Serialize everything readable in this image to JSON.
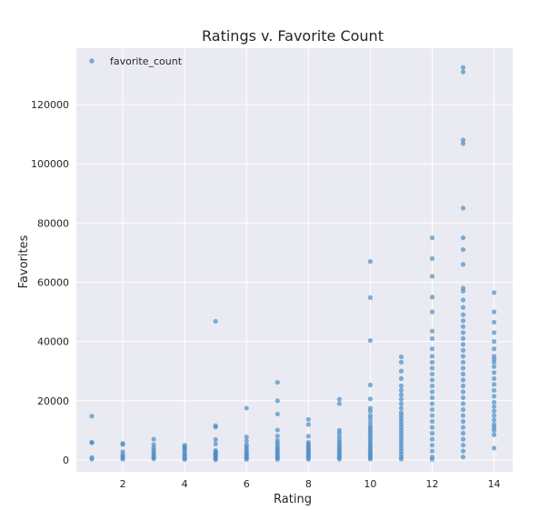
{
  "chart_data": {
    "type": "scatter",
    "title": "Ratings v. Favorite Count",
    "xlabel": "Rating",
    "ylabel": "Favorites",
    "xlim": [
      0.5,
      14.6
    ],
    "ylim": [
      -4000,
      139000
    ],
    "xticks": [
      2,
      4,
      6,
      8,
      10,
      12,
      14
    ],
    "yticks": [
      0,
      20000,
      40000,
      60000,
      80000,
      100000,
      120000
    ],
    "grid": true,
    "legend": {
      "placement": "top-left",
      "entries": [
        "favorite_count"
      ]
    },
    "colors": {
      "point": "#4c8fc4",
      "background": "#eaeaf2",
      "grid": "#ffffff"
    },
    "series": [
      {
        "name": "favorite_count",
        "points": [
          [
            1,
            14800
          ],
          [
            1,
            6000
          ],
          [
            1,
            5800
          ],
          [
            1,
            800
          ],
          [
            1,
            300
          ],
          [
            2,
            5600
          ],
          [
            2,
            5200
          ],
          [
            2,
            2800
          ],
          [
            2,
            1800
          ],
          [
            2,
            1200
          ],
          [
            2,
            700
          ],
          [
            2,
            300
          ],
          [
            3,
            7000
          ],
          [
            3,
            5200
          ],
          [
            3,
            4200
          ],
          [
            3,
            3400
          ],
          [
            3,
            2600
          ],
          [
            3,
            1900
          ],
          [
            3,
            1300
          ],
          [
            3,
            800
          ],
          [
            3,
            400
          ],
          [
            4,
            5000
          ],
          [
            4,
            4500
          ],
          [
            4,
            4000
          ],
          [
            4,
            3500
          ],
          [
            4,
            3000
          ],
          [
            4,
            2200
          ],
          [
            4,
            1600
          ],
          [
            4,
            1000
          ],
          [
            4,
            500
          ],
          [
            4,
            200
          ],
          [
            5,
            46800
          ],
          [
            5,
            11600
          ],
          [
            5,
            11100
          ],
          [
            5,
            6900
          ],
          [
            5,
            5400
          ],
          [
            5,
            3200
          ],
          [
            5,
            2800
          ],
          [
            5,
            2400
          ],
          [
            5,
            2000
          ],
          [
            5,
            1600
          ],
          [
            5,
            1200
          ],
          [
            5,
            800
          ],
          [
            5,
            400
          ],
          [
            5,
            100
          ],
          [
            6,
            17500
          ],
          [
            6,
            7800
          ],
          [
            6,
            6500
          ],
          [
            6,
            5200
          ],
          [
            6,
            4400
          ],
          [
            6,
            3700
          ],
          [
            6,
            3000
          ],
          [
            6,
            2500
          ],
          [
            6,
            2000
          ],
          [
            6,
            1500
          ],
          [
            6,
            1000
          ],
          [
            6,
            600
          ],
          [
            6,
            200
          ],
          [
            7,
            26200
          ],
          [
            7,
            20000
          ],
          [
            7,
            15500
          ],
          [
            7,
            10100
          ],
          [
            7,
            8100
          ],
          [
            7,
            6600
          ],
          [
            7,
            5800
          ],
          [
            7,
            5000
          ],
          [
            7,
            4200
          ],
          [
            7,
            3600
          ],
          [
            7,
            3000
          ],
          [
            7,
            2400
          ],
          [
            7,
            1800
          ],
          [
            7,
            1200
          ],
          [
            7,
            700
          ],
          [
            7,
            200
          ],
          [
            8,
            13700
          ],
          [
            8,
            12000
          ],
          [
            8,
            8000
          ],
          [
            8,
            6000
          ],
          [
            8,
            5400
          ],
          [
            8,
            4800
          ],
          [
            8,
            4200
          ],
          [
            8,
            3700
          ],
          [
            8,
            3200
          ],
          [
            8,
            2700
          ],
          [
            8,
            2200
          ],
          [
            8,
            1700
          ],
          [
            8,
            1200
          ],
          [
            8,
            700
          ],
          [
            8,
            200
          ],
          [
            9,
            20500
          ],
          [
            9,
            19000
          ],
          [
            9,
            10000
          ],
          [
            9,
            9000
          ],
          [
            9,
            7800
          ],
          [
            9,
            6800
          ],
          [
            9,
            6000
          ],
          [
            9,
            5200
          ],
          [
            9,
            4500
          ],
          [
            9,
            3800
          ],
          [
            9,
            3200
          ],
          [
            9,
            2600
          ],
          [
            9,
            2000
          ],
          [
            9,
            1400
          ],
          [
            9,
            800
          ],
          [
            9,
            300
          ],
          [
            10,
            67000
          ],
          [
            10,
            54800
          ],
          [
            10,
            40300
          ],
          [
            10,
            25300
          ],
          [
            10,
            20600
          ],
          [
            10,
            17500
          ],
          [
            10,
            16500
          ],
          [
            10,
            15000
          ],
          [
            10,
            14000
          ],
          [
            10,
            12800
          ],
          [
            10,
            11600
          ],
          [
            10,
            10800
          ],
          [
            10,
            10000
          ],
          [
            10,
            9200
          ],
          [
            10,
            8400
          ],
          [
            10,
            7600
          ],
          [
            10,
            6800
          ],
          [
            10,
            6000
          ],
          [
            10,
            5300
          ],
          [
            10,
            4600
          ],
          [
            10,
            3900
          ],
          [
            10,
            3200
          ],
          [
            10,
            2600
          ],
          [
            10,
            2000
          ],
          [
            10,
            1400
          ],
          [
            10,
            800
          ],
          [
            10,
            300
          ],
          [
            11,
            34800
          ],
          [
            11,
            33000
          ],
          [
            11,
            30000
          ],
          [
            11,
            27500
          ],
          [
            11,
            25000
          ],
          [
            11,
            23500
          ],
          [
            11,
            22000
          ],
          [
            11,
            20500
          ],
          [
            11,
            19000
          ],
          [
            11,
            17500
          ],
          [
            11,
            16000
          ],
          [
            11,
            15000
          ],
          [
            11,
            14000
          ],
          [
            11,
            13000
          ],
          [
            11,
            12000
          ],
          [
            11,
            11000
          ],
          [
            11,
            10000
          ],
          [
            11,
            9000
          ],
          [
            11,
            8000
          ],
          [
            11,
            7000
          ],
          [
            11,
            6000
          ],
          [
            11,
            5000
          ],
          [
            11,
            4000
          ],
          [
            11,
            3000
          ],
          [
            11,
            2000
          ],
          [
            11,
            1000
          ],
          [
            11,
            300
          ],
          [
            12,
            75000
          ],
          [
            12,
            68000
          ],
          [
            12,
            62000
          ],
          [
            12,
            55000
          ],
          [
            12,
            50000
          ],
          [
            12,
            43500
          ],
          [
            12,
            41000
          ],
          [
            12,
            37500
          ],
          [
            12,
            35000
          ],
          [
            12,
            33000
          ],
          [
            12,
            31000
          ],
          [
            12,
            29000
          ],
          [
            12,
            27000
          ],
          [
            12,
            25000
          ],
          [
            12,
            23000
          ],
          [
            12,
            21000
          ],
          [
            12,
            19000
          ],
          [
            12,
            17000
          ],
          [
            12,
            15000
          ],
          [
            12,
            13000
          ],
          [
            12,
            11000
          ],
          [
            12,
            9000
          ],
          [
            12,
            7000
          ],
          [
            12,
            5000
          ],
          [
            12,
            3000
          ],
          [
            12,
            1000
          ],
          [
            12,
            200
          ],
          [
            13,
            132500
          ],
          [
            13,
            131000
          ],
          [
            13,
            108000
          ],
          [
            13,
            106800
          ],
          [
            13,
            85000
          ],
          [
            13,
            75000
          ],
          [
            13,
            71000
          ],
          [
            13,
            66000
          ],
          [
            13,
            58000
          ],
          [
            13,
            57000
          ],
          [
            13,
            54000
          ],
          [
            13,
            51500
          ],
          [
            13,
            49000
          ],
          [
            13,
            47000
          ],
          [
            13,
            45000
          ],
          [
            13,
            43000
          ],
          [
            13,
            41000
          ],
          [
            13,
            39000
          ],
          [
            13,
            37000
          ],
          [
            13,
            35000
          ],
          [
            13,
            33000
          ],
          [
            13,
            31000
          ],
          [
            13,
            29000
          ],
          [
            13,
            27000
          ],
          [
            13,
            25000
          ],
          [
            13,
            23000
          ],
          [
            13,
            21000
          ],
          [
            13,
            19000
          ],
          [
            13,
            17000
          ],
          [
            13,
            15000
          ],
          [
            13,
            13000
          ],
          [
            13,
            11000
          ],
          [
            13,
            9000
          ],
          [
            13,
            7000
          ],
          [
            13,
            5000
          ],
          [
            13,
            3000
          ],
          [
            13,
            1000
          ],
          [
            14,
            56500
          ],
          [
            14,
            50000
          ],
          [
            14,
            46500
          ],
          [
            14,
            43000
          ],
          [
            14,
            40000
          ],
          [
            14,
            37500
          ],
          [
            14,
            35000
          ],
          [
            14,
            34000
          ],
          [
            14,
            33000
          ],
          [
            14,
            31500
          ],
          [
            14,
            29500
          ],
          [
            14,
            27500
          ],
          [
            14,
            25500
          ],
          [
            14,
            23500
          ],
          [
            14,
            21500
          ],
          [
            14,
            19500
          ],
          [
            14,
            18000
          ],
          [
            14,
            16500
          ],
          [
            14,
            15000
          ],
          [
            14,
            13500
          ],
          [
            14,
            12000
          ],
          [
            14,
            11000
          ],
          [
            14,
            10000
          ],
          [
            14,
            8500
          ],
          [
            14,
            4000
          ]
        ]
      }
    ]
  }
}
